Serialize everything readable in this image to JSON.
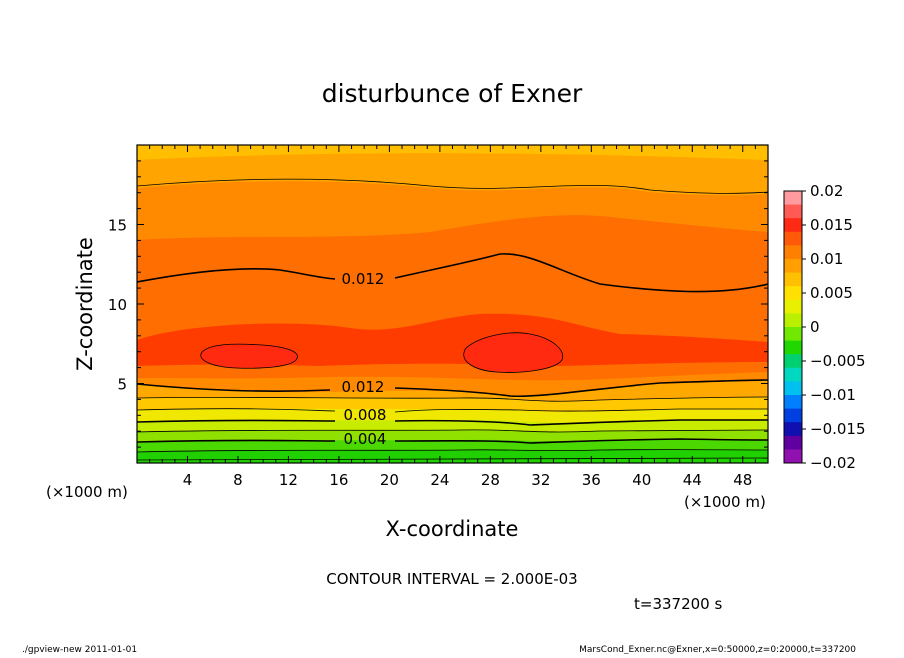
{
  "chart_data": {
    "type": "contour",
    "title": "disturbunce of Exner",
    "xlabel": "X-coordinate",
    "ylabel": "Z-coordinate",
    "x_unit_label_left": "(×1000 m)",
    "x_unit_label_right": "(×1000 m)",
    "xlim": [
      0,
      50
    ],
    "ylim": [
      0,
      20
    ],
    "x_ticks": [
      4,
      8,
      12,
      16,
      20,
      24,
      28,
      32,
      36,
      40,
      44,
      48
    ],
    "y_ticks": [
      5,
      10,
      15
    ],
    "colorbar": {
      "levels": [
        0.02,
        0.015,
        0.01,
        0.005,
        0,
        -0.005,
        -0.01,
        -0.015,
        -0.02
      ],
      "tick_labels": [
        "0.02",
        "0.015",
        "0.01",
        "0.005",
        "0",
        "−0.005",
        "−0.01",
        "−0.015",
        "−0.02"
      ],
      "colors": [
        "#ff9aa0",
        "#ff5a54",
        "#ff2a14",
        "#ff5a08",
        "#ff8000",
        "#ffa000",
        "#ffc000",
        "#ffe000",
        "#e8f000",
        "#b8f000",
        "#70e800",
        "#20d800",
        "#00d070",
        "#00d8c0",
        "#00c0f0",
        "#0080ff",
        "#0040e0",
        "#1010b0",
        "#6000a0",
        "#9010b0"
      ]
    },
    "contour_labels": [
      {
        "text": "0.012",
        "x": 20,
        "z": 11.6
      },
      {
        "text": "0.012",
        "x": 20,
        "z": 4.6
      },
      {
        "text": "0.008",
        "x": 20,
        "z": 2.9
      },
      {
        "text": "0.004",
        "x": 20,
        "z": 1.45
      }
    ],
    "contour_interval_text": "CONTOUR INTERVAL = 2.000E-03",
    "time_text": "t=337200  s",
    "footer_left": "./gpview-new  2011-01-01",
    "footer_right": "MarsCond_Exner.nc@Exner,x=0:50000,z=0:20000,t=337200"
  }
}
